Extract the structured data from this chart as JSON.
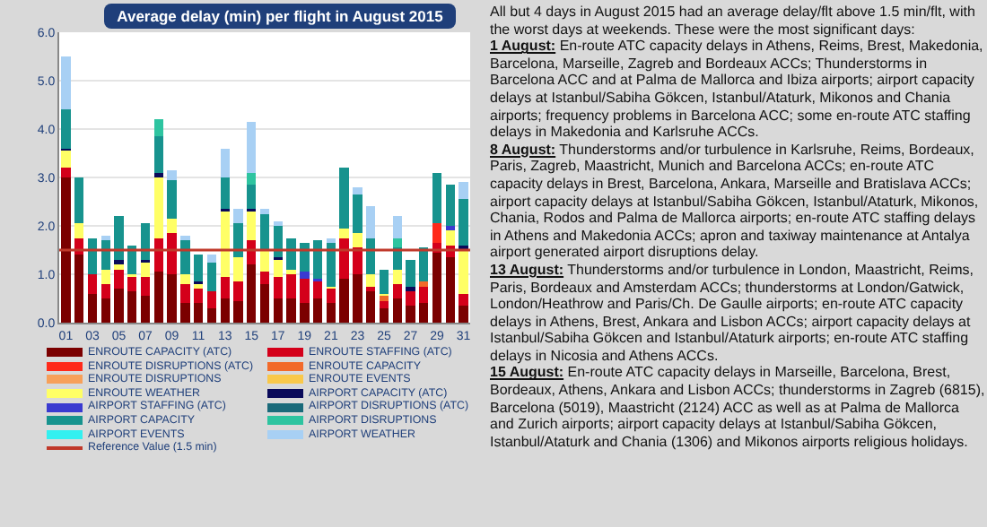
{
  "chart_data": {
    "type": "bar",
    "stacked": true,
    "title": "Average delay (min) per flight in August 2015",
    "categories": [
      "01",
      null,
      "03",
      null,
      "05",
      null,
      "07",
      null,
      "09",
      null,
      "11",
      null,
      "13",
      null,
      "15",
      null,
      "17",
      null,
      "19",
      null,
      "21",
      null,
      "23",
      null,
      "25",
      null,
      "27",
      null,
      "29",
      null,
      "31"
    ],
    "ylim": [
      0,
      6
    ],
    "yticks": [
      {
        "value": 0,
        "label": "0.0"
      },
      {
        "value": 1,
        "label": "1.0"
      },
      {
        "value": 2,
        "label": "2.0"
      },
      {
        "value": 3,
        "label": "3.0"
      },
      {
        "value": 4,
        "label": "4.0"
      },
      {
        "value": 5,
        "label": "5.0"
      },
      {
        "value": 6,
        "label": "6.0"
      }
    ],
    "grid": "y",
    "legend": "bottom",
    "series": [
      {
        "name": "ENROUTE CAPACITY (ATC)",
        "color": "#7b0000",
        "values": [
          3.0,
          1.4,
          0.6,
          0.5,
          0.7,
          0.65,
          0.55,
          1.05,
          1.0,
          0.4,
          0.4,
          0.3,
          0.5,
          0.45,
          1.2,
          0.8,
          0.5,
          0.5,
          0.4,
          0.5,
          0.4,
          0.9,
          1.0,
          0.65,
          0.3,
          0.5,
          0.35,
          0.4,
          1.45,
          1.35,
          0.35
        ]
      },
      {
        "name": "ENROUTE STAFFING (ATC)",
        "color": "#d4001a",
        "values": [
          0.2,
          0.35,
          0.4,
          0.3,
          0.4,
          0.3,
          0.4,
          0.7,
          0.85,
          0.4,
          0.3,
          0.35,
          0.45,
          0.4,
          0.5,
          0.25,
          0.45,
          0.5,
          0.5,
          0.35,
          0.3,
          0.85,
          0.55,
          0.1,
          0.15,
          0.3,
          0.3,
          0.35,
          0.2,
          0.25,
          0.25
        ]
      },
      {
        "name": "ENROUTE DISRUPTIONS (ATC)",
        "color": "#ff2a1a",
        "values": [
          0,
          0,
          0,
          0,
          0,
          0,
          0,
          0,
          0,
          0,
          0,
          0,
          0,
          0,
          0,
          0,
          0,
          0,
          0,
          0,
          0,
          0,
          0,
          0,
          0,
          0,
          0,
          0,
          0.4,
          0,
          0
        ]
      },
      {
        "name": "ENROUTE CAPACITY",
        "color": "#f26a2a",
        "values": [
          0,
          0,
          0,
          0,
          0,
          0,
          0,
          0,
          0,
          0,
          0,
          0,
          0,
          0,
          0,
          0,
          0,
          0,
          0,
          0,
          0,
          0,
          0,
          0,
          0.1,
          0,
          0,
          0.1,
          0,
          0,
          0
        ]
      },
      {
        "name": "ENROUTE DISRUPTIONS",
        "color": "#f7a05a",
        "values": [
          0,
          0,
          0,
          0,
          0,
          0,
          0,
          0,
          0,
          0,
          0,
          0,
          0,
          0,
          0,
          0,
          0,
          0,
          0,
          0,
          0,
          0,
          0,
          0,
          0,
          0,
          0,
          0,
          0,
          0,
          0
        ]
      },
      {
        "name": "ENROUTE EVENTS",
        "color": "#f9c84a",
        "values": [
          0,
          0,
          0,
          0,
          0,
          0,
          0,
          0,
          0,
          0,
          0,
          0,
          0,
          0,
          0,
          0,
          0,
          0,
          0,
          0,
          0,
          0,
          0,
          0,
          0,
          0,
          0,
          0,
          0,
          0,
          0
        ]
      },
      {
        "name": "ENROUTE WEATHER",
        "color": "#ffff66",
        "values": [
          0.35,
          0.3,
          0,
          0.3,
          0.1,
          0.05,
          0.3,
          1.25,
          0.3,
          0.2,
          0.1,
          0,
          1.35,
          0.5,
          0.6,
          0.45,
          0.35,
          0.1,
          0,
          0,
          0.05,
          0.2,
          0.3,
          0.25,
          0.05,
          0.3,
          0,
          0,
          0,
          0.3,
          0.9
        ]
      },
      {
        "name": "AIRPORT CAPACITY (ATC)",
        "color": "#0a0a5a",
        "values": [
          0.05,
          0,
          0,
          0,
          0.1,
          0,
          0.05,
          0.1,
          0,
          0,
          0.05,
          0,
          0.05,
          0,
          0.05,
          0,
          0.05,
          0,
          0,
          0,
          0,
          0,
          0,
          0,
          0,
          0,
          0.1,
          0,
          0,
          0,
          0.1
        ]
      },
      {
        "name": "AIRPORT STAFFING (ATC)",
        "color": "#3a3ad0",
        "values": [
          0,
          0,
          0,
          0,
          0,
          0,
          0,
          0,
          0,
          0,
          0,
          0,
          0,
          0,
          0,
          0,
          0,
          0,
          0.15,
          0.05,
          0,
          0,
          0,
          0,
          0,
          0,
          0,
          0,
          0,
          0.1,
          0
        ]
      },
      {
        "name": "AIRPORT DISRUPTIONS (ATC)",
        "color": "#1a6a7a",
        "values": [
          0,
          0,
          0,
          0,
          0,
          0,
          0,
          0,
          0,
          0,
          0,
          0,
          0,
          0,
          0,
          0,
          0,
          0,
          0,
          0,
          0,
          0,
          0,
          0,
          0,
          0,
          0,
          0,
          0,
          0,
          0
        ]
      },
      {
        "name": "AIRPORT CAPACITY",
        "color": "#17938e",
        "values": [
          0.8,
          0.95,
          0.75,
          0.6,
          0.9,
          0.6,
          0.75,
          0.75,
          0.8,
          0.7,
          0.55,
          0.6,
          0.65,
          0.7,
          0.5,
          0.75,
          0.65,
          0.65,
          0.6,
          0.8,
          0.9,
          1.25,
          0.8,
          0.75,
          0.5,
          0.45,
          0.55,
          0.7,
          1.05,
          0.85,
          0.95
        ]
      },
      {
        "name": "AIRPORT DISRUPTIONS",
        "color": "#2ec4a0",
        "values": [
          0,
          0,
          0,
          0,
          0,
          0,
          0,
          0.35,
          0,
          0,
          0,
          0,
          0,
          0,
          0.25,
          0,
          0,
          0,
          0,
          0,
          0,
          0,
          0,
          0,
          0,
          0.2,
          0,
          0,
          0,
          0,
          0
        ]
      },
      {
        "name": "AIRPORT EVENTS",
        "color": "#33f0f0",
        "values": [
          0,
          0,
          0,
          0,
          0,
          0,
          0,
          0,
          0,
          0,
          0,
          0,
          0,
          0,
          0,
          0,
          0,
          0,
          0,
          0,
          0,
          0,
          0,
          0,
          0,
          0,
          0,
          0,
          0,
          0,
          0
        ]
      },
      {
        "name": "AIRPORT WEATHER",
        "color": "#a8d0f4",
        "values": [
          1.1,
          0,
          0,
          0.1,
          0,
          0,
          0,
          0,
          0.2,
          0.1,
          0,
          0.15,
          0.6,
          0.3,
          1.05,
          0.1,
          0.1,
          0,
          0,
          0,
          0.1,
          0,
          0.15,
          0.65,
          0,
          0.45,
          0,
          0,
          0,
          0,
          0.35
        ]
      }
    ],
    "ref_lines": [
      {
        "axis": "y",
        "value": 1.5,
        "label": "Reference Value (1.5 min)",
        "color": "#c0392b"
      }
    ],
    "annotations": [
      "All but 4 days in August 2015 had an average delay/flt above 1.5 min/flt, with the worst days at weekends. These were the most significant days:",
      "1 August: En-route ATC capacity delays in Athens, Reims, Brest, Makedonia, Barcelona, Marseille, Zagreb and Bordeaux ACCs; Thunderstorms in Barcelona ACC and at Palma de Mallorca and Ibiza airports; airport capacity delays at Istanbul/Sabiha Gökcen, Istanbul/Ataturk, Mikonos and Chania airports; frequency problems in Barcelona ACC; some en-route ATC staffing delays in Makedonia and Karlsruhe ACCs.",
      "8 August: Thunderstorms and/or turbulence in Karlsruhe, Reims, Bordeaux, Paris, Zagreb, Maastricht, Munich and Barcelona ACCs; en-route ATC capacity delays in Brest, Barcelona, Ankara, Marseille and Bratislava ACCs; airport capacity delays at Istanbul/Sabiha Gökcen, Istanbul/Ataturk, Mikonos, Chania, Rodos and Palma de Mallorca airports; en-route ATC staffing delays in Athens and Makedonia ACCs; apron and taxiway maintenance at Antalya airport generated airport disruptions delay.",
      "13 August: Thunderstorms and/or turbulence in London, Maastricht, Reims, Paris, Bordeaux and Amsterdam ACCs; thunderstorms at London/Gatwick, London/Heathrow and Paris/Ch. De Gaulle airports; en-route ATC capacity delays in Athens, Brest, Ankara and Lisbon ACCs; airport capacity delays at Istanbul/Sabiha Gökcen  and Istanbul/Ataturk airports; en-route ATC staffing delays in Nicosia and Athens ACCs.",
      "15 August: En-route ATC capacity delays in Marseille, Barcelona, Brest, Bordeaux, Athens, Ankara and Lisbon ACCs; thunderstorms in Zagreb (6815),  Barcelona (5019), Maastricht (2124) ACC as well as at Palma de Mallorca and Zurich airports; airport capacity delays at Istanbul/Sabiha Gökcen, Istanbul/Ataturk and Chania (1306) and Mikonos  airports religious holidays."
    ]
  }
}
